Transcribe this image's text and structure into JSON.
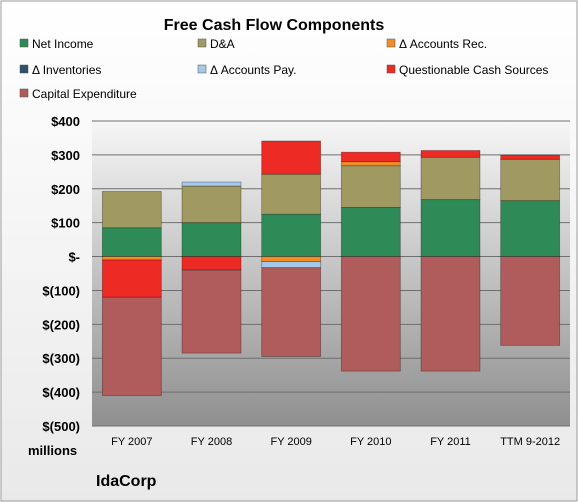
{
  "chart_data": {
    "type": "bar",
    "stacked": true,
    "title": "Free Cash Flow Components",
    "units_label": "millions",
    "company": "IdaCorp",
    "categories": [
      "FY 2007",
      "FY 2008",
      "FY 2009",
      "FY 2010",
      "FY 2011",
      "TTM 9-2012"
    ],
    "y_tick_labels": [
      "$(500)",
      "$(400)",
      "$(300)",
      "$(200)",
      "$(100)",
      "$-",
      "$100",
      "$200",
      "$300",
      "$400"
    ],
    "y_tick_values": [
      -500,
      -400,
      -300,
      -200,
      -100,
      0,
      100,
      200,
      300,
      400
    ],
    "ylim": [
      -500,
      400
    ],
    "grid": true,
    "legend_position": "top",
    "series": [
      {
        "name": "Net Income",
        "color": "#2e8b57",
        "values": [
          85,
          100,
          125,
          145,
          168,
          165
        ]
      },
      {
        "name": "D&A",
        "color": "#a09a62",
        "values": [
          107,
          108,
          118,
          123,
          125,
          122
        ]
      },
      {
        "name": "Δ Accounts Rec.",
        "color": "#f28c28",
        "values": [
          -10,
          0,
          -15,
          12,
          0,
          0
        ]
      },
      {
        "name": "Δ Inventories",
        "color": "#2f4f6f",
        "values": [
          0,
          0,
          0,
          0,
          0,
          0
        ]
      },
      {
        "name": "Δ Accounts Pay.",
        "color": "#a6c8e8",
        "values": [
          0,
          12,
          -18,
          0,
          0,
          0
        ]
      },
      {
        "name": "Questionable Cash Sources",
        "color": "#ee2a24",
        "values": [
          -110,
          -40,
          98,
          28,
          20,
          12
        ]
      },
      {
        "name": "Capital Expenditure",
        "color": "#b05c5c",
        "values": [
          -290,
          -245,
          -262,
          -338,
          -338,
          -262
        ]
      }
    ]
  }
}
